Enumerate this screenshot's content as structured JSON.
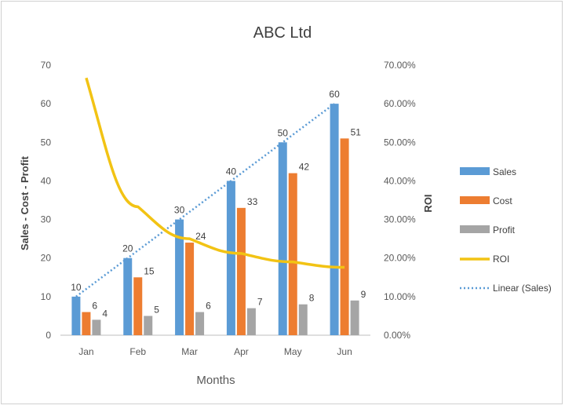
{
  "chart_data": {
    "type": "bar",
    "title": "ABC Ltd",
    "xlabel": "Months",
    "ylabel": "Sales - Cost - Profit",
    "y2label": "ROI",
    "categories": [
      "Jan",
      "Feb",
      "Mar",
      "Apr",
      "May",
      "Jun"
    ],
    "ylim": [
      0,
      70
    ],
    "yticks": [
      "0",
      "10",
      "20",
      "30",
      "40",
      "50",
      "60",
      "70"
    ],
    "y2lim": [
      0,
      0.7
    ],
    "y2ticks": [
      "0.00%",
      "10.00%",
      "20.00%",
      "30.00%",
      "40.00%",
      "50.00%",
      "60.00%",
      "70.00%"
    ],
    "series": [
      {
        "name": "Sales",
        "kind": "bar",
        "color": "#5b9bd5",
        "values": [
          10,
          20,
          30,
          40,
          50,
          60
        ],
        "labels": [
          "10",
          "20",
          "30",
          "40",
          "50",
          "60"
        ]
      },
      {
        "name": "Cost",
        "kind": "bar",
        "color": "#ed7d31",
        "values": [
          6,
          15,
          24,
          33,
          42,
          51
        ],
        "labels": [
          "6",
          "15",
          "24",
          "33",
          "42",
          "51"
        ]
      },
      {
        "name": "Profit",
        "kind": "bar",
        "color": "#a5a5a5",
        "values": [
          4,
          5,
          6,
          7,
          8,
          9
        ],
        "labels": [
          "4",
          "5",
          "6",
          "7",
          "8",
          "9"
        ]
      },
      {
        "name": "ROI",
        "kind": "line",
        "axis": "secondary",
        "color": "#f2c314",
        "values": [
          0.667,
          0.333,
          0.25,
          0.212,
          0.19,
          0.176
        ]
      },
      {
        "name": "Linear (Sales)",
        "kind": "trendline",
        "color": "#5b9bd5",
        "values": [
          10,
          20,
          30,
          40,
          50,
          60
        ]
      }
    ],
    "legend": "right"
  }
}
